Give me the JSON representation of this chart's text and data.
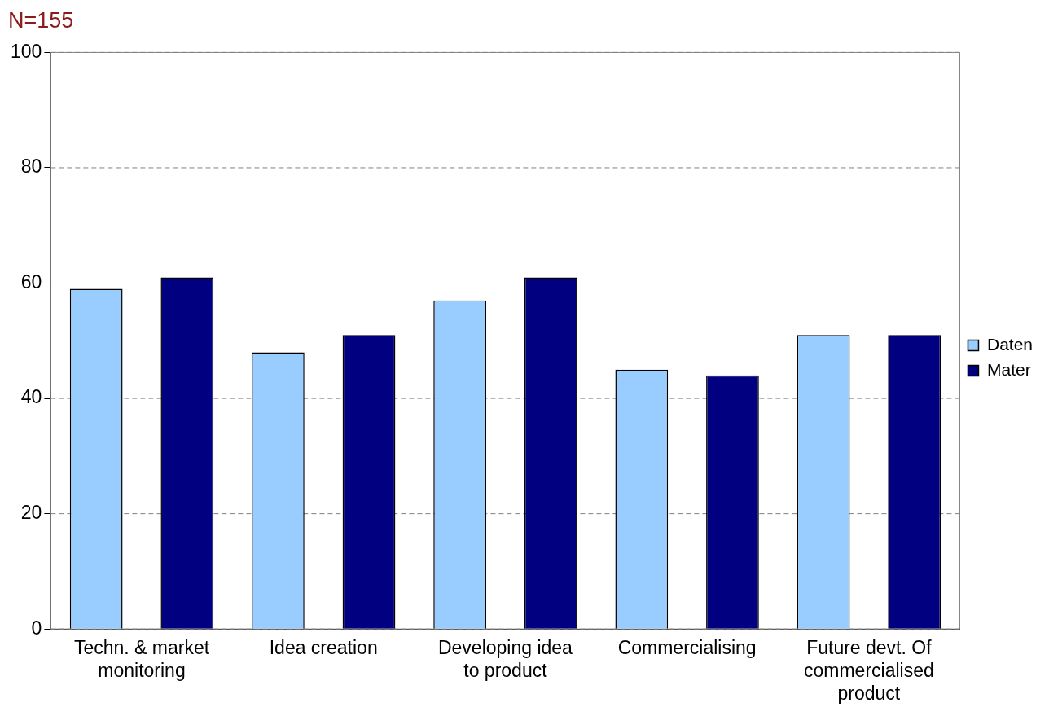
{
  "chart_data": {
    "type": "bar",
    "title": "N=155",
    "categories": [
      "Techn. & market monitoring",
      "Idea creation",
      "Developing idea to product",
      "Commercialising",
      "Future devt. Of commercialised product"
    ],
    "series": [
      {
        "name": "Daten",
        "color": "#99ccff",
        "values": [
          59,
          48,
          57,
          45,
          51
        ]
      },
      {
        "name": "Mater",
        "color": "#000080",
        "values": [
          61,
          51,
          61,
          44,
          51
        ]
      }
    ],
    "ylim": [
      0,
      100
    ],
    "yticks": [
      0,
      20,
      40,
      60,
      80,
      100
    ],
    "grid": "y",
    "legend": "right"
  }
}
